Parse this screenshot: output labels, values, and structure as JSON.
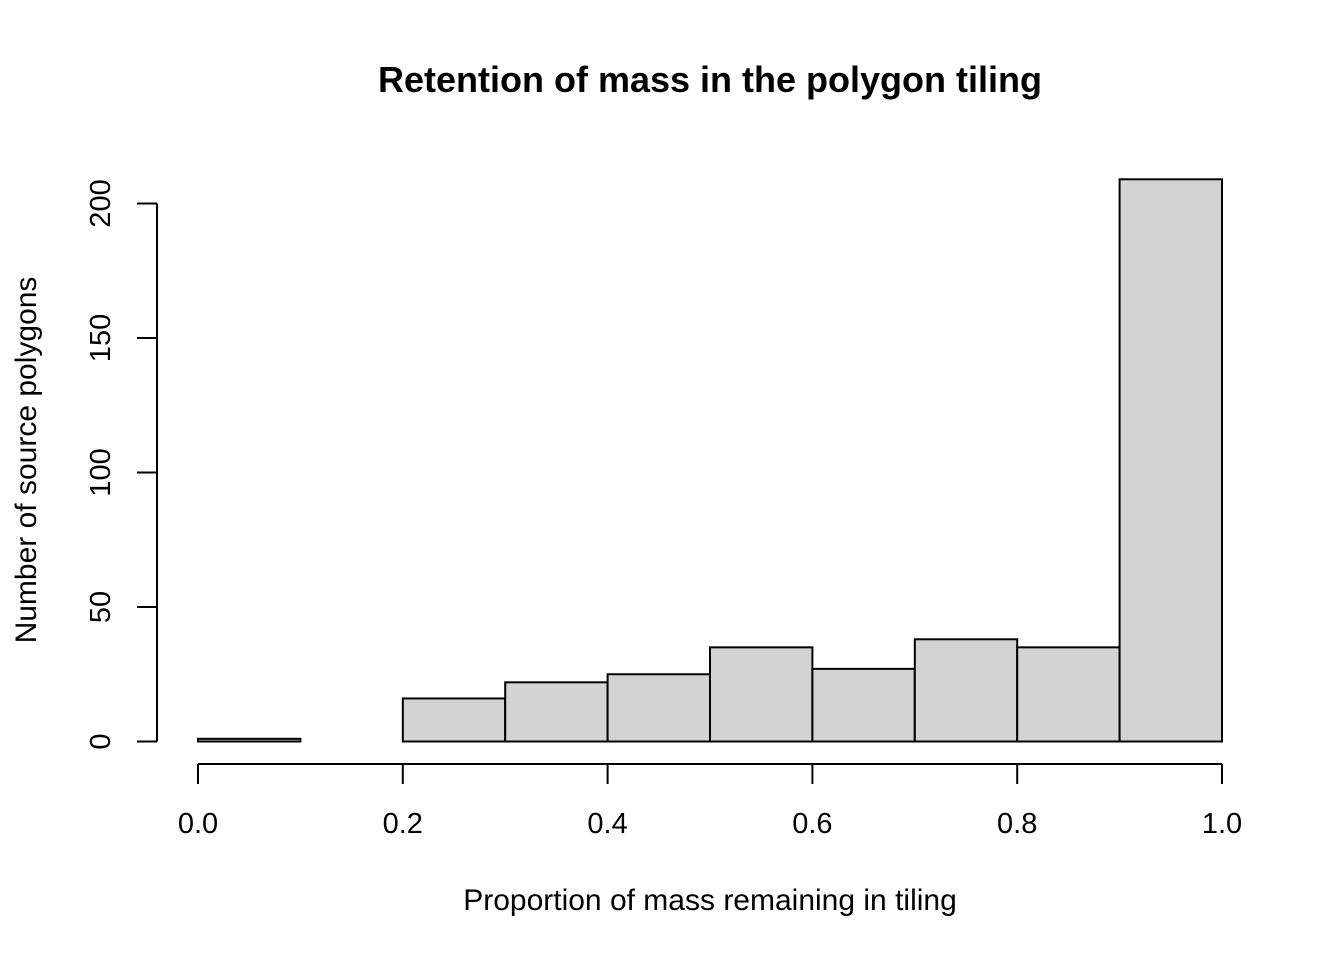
{
  "chart_data": {
    "type": "bar",
    "title": "Retention of mass in the polygon tiling",
    "xlabel": "Proportion of mass remaining in tiling",
    "ylabel": "Number of source polygons",
    "bins": [
      {
        "x0": 0.0,
        "x1": 0.1,
        "count": 1
      },
      {
        "x0": 0.1,
        "x1": 0.2,
        "count": 0
      },
      {
        "x0": 0.2,
        "x1": 0.3,
        "count": 16
      },
      {
        "x0": 0.3,
        "x1": 0.4,
        "count": 22
      },
      {
        "x0": 0.4,
        "x1": 0.5,
        "count": 25
      },
      {
        "x0": 0.5,
        "x1": 0.6,
        "count": 35
      },
      {
        "x0": 0.6,
        "x1": 0.7,
        "count": 27
      },
      {
        "x0": 0.7,
        "x1": 0.8,
        "count": 38
      },
      {
        "x0": 0.8,
        "x1": 0.9,
        "count": 35
      },
      {
        "x0": 0.9,
        "x1": 1.0,
        "count": 209
      }
    ],
    "xlim": [
      0.0,
      1.0
    ],
    "ylim": [
      0,
      200
    ],
    "xticks": [
      "0.0",
      "0.2",
      "0.4",
      "0.6",
      "0.8",
      "1.0"
    ],
    "yticks": [
      "0",
      "50",
      "100",
      "150",
      "200"
    ],
    "grid": false,
    "colors": {
      "bar_fill": "#d3d3d3",
      "bar_stroke": "#000000"
    }
  }
}
